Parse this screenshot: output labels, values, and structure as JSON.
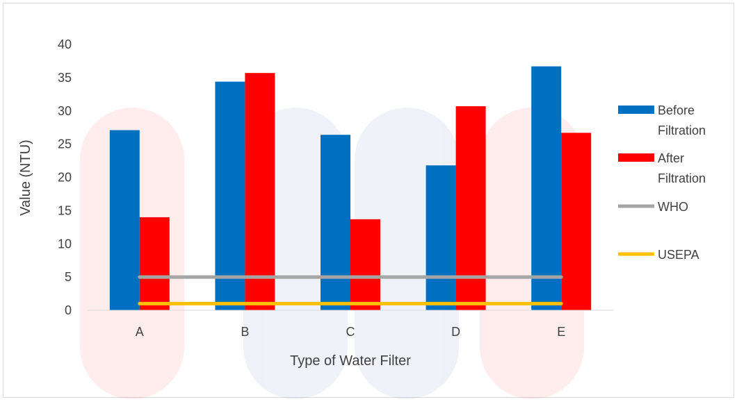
{
  "chart_data": {
    "type": "bar",
    "categories": [
      "A",
      "B",
      "C",
      "D",
      "E"
    ],
    "series": [
      {
        "name": "Before Filtration",
        "kind": "bar",
        "color": "#0070C0",
        "values": [
          27.1,
          34.4,
          26.4,
          21.8,
          36.7
        ]
      },
      {
        "name": "After Filtration",
        "kind": "bar",
        "color": "#FF0000",
        "values": [
          14.0,
          35.7,
          13.7,
          30.7,
          26.7
        ]
      },
      {
        "name": "WHO",
        "kind": "line",
        "color": "#A5A5A5",
        "values": [
          5,
          5,
          5,
          5,
          5
        ]
      },
      {
        "name": "USEPA",
        "kind": "line",
        "color": "#FFC000",
        "values": [
          1,
          1,
          1,
          1,
          1
        ]
      }
    ],
    "title": "",
    "xlabel": "Type of Water Filter",
    "ylabel": "Value (NTU)",
    "ylim": [
      0,
      40
    ],
    "yticks": [
      "0",
      "5",
      "10",
      "15",
      "20",
      "25",
      "30",
      "35",
      "40"
    ],
    "grid": false,
    "legend_position": "right"
  },
  "legend": {
    "before_line1": "Before",
    "before_line2": "Filtration",
    "after_line1": "After",
    "after_line2": "Filtration",
    "who": "WHO",
    "usepa": "USEPA"
  }
}
